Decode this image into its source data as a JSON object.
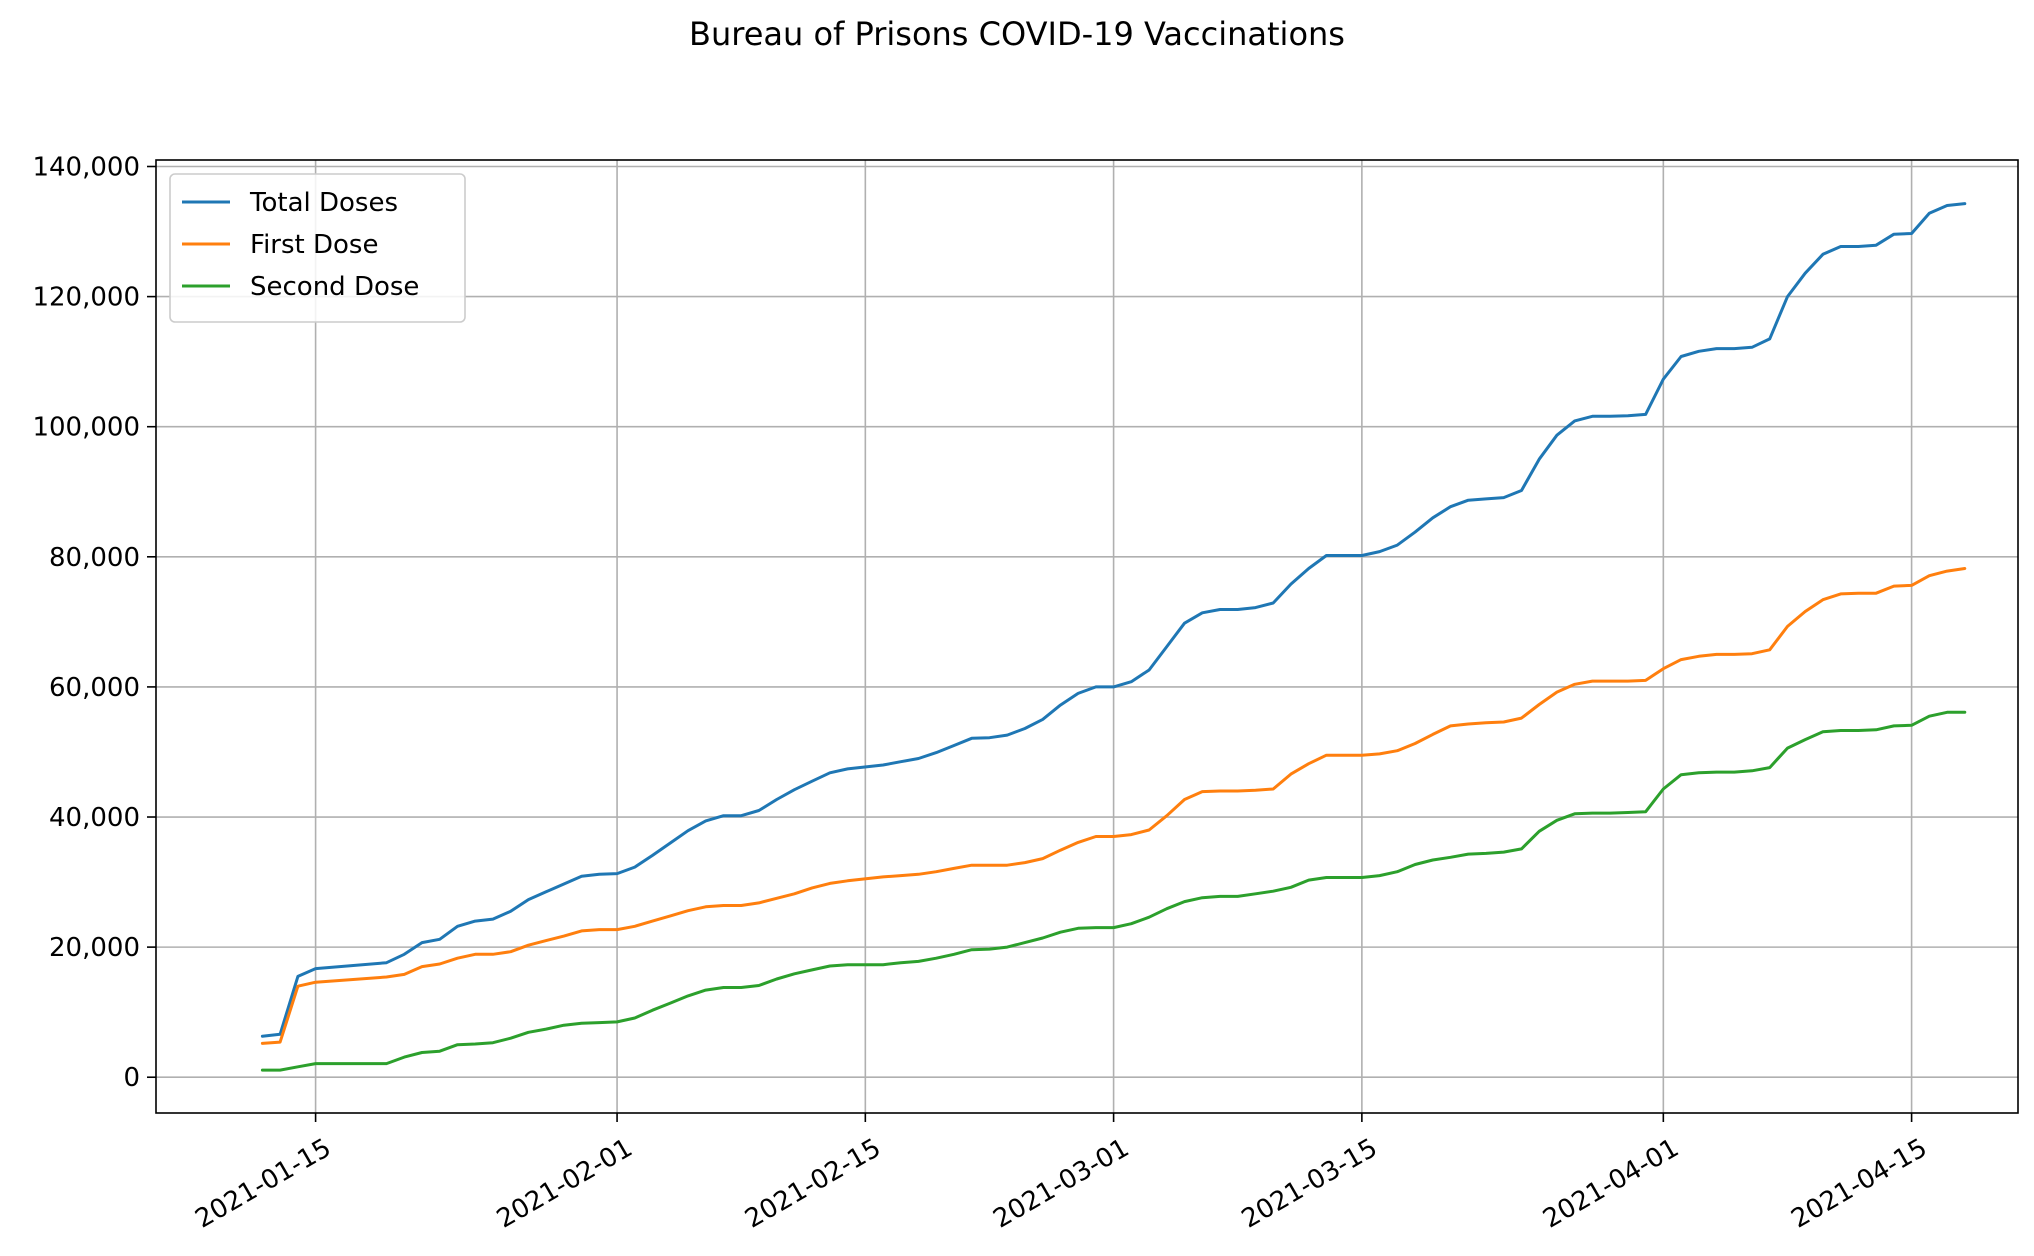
{
  "chart_data": {
    "type": "line",
    "title": "Bureau of Prisons COVID-19 Vaccinations",
    "xlabel": "",
    "ylabel": "",
    "x_axis_type": "date",
    "xlim": [
      "2021-01-06",
      "2021-04-21"
    ],
    "ylim": [
      -5500,
      141000
    ],
    "grid": true,
    "legend_position": "upper-left",
    "x_ticks": [
      "2021-01-15",
      "2021-02-01",
      "2021-02-15",
      "2021-03-01",
      "2021-03-15",
      "2021-04-01",
      "2021-04-15"
    ],
    "y_ticks": [
      0,
      20000,
      40000,
      60000,
      80000,
      100000,
      120000,
      140000
    ],
    "y_tick_labels": [
      "0",
      "20,000",
      "40,000",
      "60,000",
      "80,000",
      "100,000",
      "120,000",
      "140,000"
    ],
    "x": [
      "2021-01-12",
      "2021-01-13",
      "2021-01-14",
      "2021-01-15",
      "2021-01-19",
      "2021-01-20",
      "2021-01-21",
      "2021-01-22",
      "2021-01-23",
      "2021-01-24",
      "2021-01-25",
      "2021-01-26",
      "2021-01-27",
      "2021-01-28",
      "2021-01-29",
      "2021-01-30",
      "2021-01-31",
      "2021-02-01",
      "2021-02-02",
      "2021-02-03",
      "2021-02-04",
      "2021-02-05",
      "2021-02-06",
      "2021-02-07",
      "2021-02-08",
      "2021-02-09",
      "2021-02-10",
      "2021-02-11",
      "2021-02-12",
      "2021-02-13",
      "2021-02-14",
      "2021-02-16",
      "2021-02-17",
      "2021-02-18",
      "2021-02-19",
      "2021-02-20",
      "2021-02-21",
      "2021-02-22",
      "2021-02-23",
      "2021-02-24",
      "2021-02-25",
      "2021-02-26",
      "2021-02-27",
      "2021-02-28",
      "2021-03-01",
      "2021-03-02",
      "2021-03-03",
      "2021-03-04",
      "2021-03-05",
      "2021-03-06",
      "2021-03-07",
      "2021-03-08",
      "2021-03-09",
      "2021-03-10",
      "2021-03-11",
      "2021-03-12",
      "2021-03-13",
      "2021-03-14",
      "2021-03-15",
      "2021-03-16",
      "2021-03-17",
      "2021-03-18",
      "2021-03-19",
      "2021-03-20",
      "2021-03-21",
      "2021-03-22",
      "2021-03-23",
      "2021-03-24",
      "2021-03-25",
      "2021-03-26",
      "2021-03-27",
      "2021-03-28",
      "2021-03-29",
      "2021-03-30",
      "2021-03-31",
      "2021-04-01",
      "2021-04-02",
      "2021-04-03",
      "2021-04-04",
      "2021-04-05",
      "2021-04-06",
      "2021-04-07",
      "2021-04-08",
      "2021-04-09",
      "2021-04-10",
      "2021-04-11",
      "2021-04-12",
      "2021-04-13",
      "2021-04-14",
      "2021-04-15",
      "2021-04-16",
      "2021-04-17",
      "2021-04-18"
    ],
    "series": [
      {
        "name": "Total Doses",
        "color": "#1f77b4",
        "values": [
          6300,
          6600,
          15500,
          16700,
          17600,
          18900,
          20700,
          21200,
          23200,
          24000,
          24300,
          25500,
          27300,
          28500,
          29700,
          30900,
          31200,
          31300,
          32300,
          34100,
          36000,
          37900,
          39400,
          40200,
          40200,
          41000,
          42700,
          44200,
          45500,
          46800,
          47400,
          48000,
          48500,
          49000,
          49900,
          51000,
          52100,
          52200,
          52600,
          53600,
          55000,
          57200,
          59000,
          60000,
          60000,
          60800,
          62600,
          66200,
          69800,
          71400,
          71900,
          71900,
          72200,
          72900,
          75800,
          78200,
          80200,
          80200,
          80200,
          80800,
          81800,
          83800,
          86000,
          87700,
          88700,
          88900,
          89100,
          90200,
          95000,
          98700,
          100900,
          101600,
          101600,
          101700,
          101900,
          107300,
          110800,
          111600,
          112000,
          112000,
          112200,
          113500,
          120000,
          123600,
          126500,
          127700,
          127700,
          127900,
          129600,
          129700,
          132800,
          134000,
          134300
        ]
      },
      {
        "name": "First Dose",
        "color": "#ff7f0e",
        "values": [
          5200,
          5400,
          14000,
          14600,
          15400,
          15800,
          17000,
          17400,
          18300,
          18900,
          18900,
          19300,
          20300,
          21000,
          21700,
          22500,
          22700,
          22700,
          23200,
          24000,
          24800,
          25600,
          26200,
          26400,
          26400,
          26800,
          27500,
          28200,
          29100,
          29800,
          30200,
          30800,
          31000,
          31200,
          31600,
          32100,
          32600,
          32600,
          32600,
          33000,
          33600,
          34900,
          36100,
          37000,
          37000,
          37300,
          38000,
          40200,
          42700,
          43900,
          44000,
          44000,
          44100,
          44300,
          46600,
          48200,
          49500,
          49500,
          49500,
          49700,
          50200,
          51300,
          52700,
          54000,
          54300,
          54500,
          54600,
          55200,
          57300,
          59200,
          60400,
          60900,
          60900,
          60900,
          61000,
          62800,
          64200,
          64700,
          65000,
          65000,
          65100,
          65700,
          69300,
          71600,
          73400,
          74300,
          74400,
          74400,
          75500,
          75600,
          77100,
          77800,
          78200
        ]
      },
      {
        "name": "Second Dose",
        "color": "#2ca02c",
        "values": [
          1100,
          1100,
          1600,
          2100,
          2100,
          3100,
          3800,
          4000,
          5000,
          5100,
          5300,
          6000,
          6900,
          7400,
          8000,
          8300,
          8400,
          8500,
          9100,
          10300,
          11400,
          12500,
          13400,
          13800,
          13800,
          14100,
          15100,
          15900,
          16500,
          17100,
          17300,
          17300,
          17600,
          17800,
          18300,
          18900,
          19600,
          19700,
          20000,
          20700,
          21400,
          22300,
          22900,
          23000,
          23000,
          23600,
          24600,
          25900,
          27000,
          27600,
          27800,
          27800,
          28200,
          28600,
          29200,
          30300,
          30700,
          30700,
          30700,
          31000,
          31600,
          32700,
          33400,
          33800,
          34300,
          34400,
          34600,
          35100,
          37800,
          39500,
          40500,
          40600,
          40600,
          40700,
          40800,
          44300,
          46500,
          46800,
          46900,
          46900,
          47100,
          47600,
          50600,
          51900,
          53100,
          53300,
          53300,
          53400,
          54000,
          54100,
          55500,
          56100,
          56100
        ]
      }
    ]
  }
}
